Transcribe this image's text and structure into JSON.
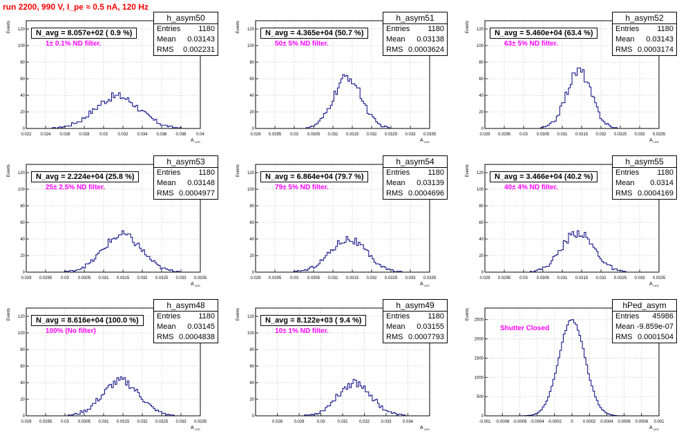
{
  "page_title": "run 2200,   990 V, I_pe ≈ 0.5 nA, 120 Hz",
  "colors": {
    "title": "#ff0000",
    "filter_label": "#ff00ff",
    "histogram": "#000080",
    "grid": "#b4b4b4"
  },
  "axis": {
    "ylabel": "Events",
    "xlabel": "A",
    "xlabel_sub": "LED"
  },
  "panels": [
    {
      "name": "h_asym50",
      "navg": "N_avg = 8.057e+02 ( 0.9 %)",
      "filter": "1± 0.1% ND filter.",
      "stats": {
        "labels": [
          "Entries",
          "Mean",
          "RMS"
        ],
        "values": [
          "1180",
          "0.03143",
          "0.002231"
        ]
      },
      "xlim": [
        0.022,
        0.04
      ],
      "ylim": [
        0,
        130
      ],
      "xticks": [
        0.022,
        0.024,
        0.026,
        0.028,
        0.03,
        0.032,
        0.034,
        0.036,
        0.038,
        0.04
      ],
      "xticklabels": [
        "0.022",
        "0.024",
        "0.026",
        "0.028",
        "0.03",
        "0.032",
        "0.034",
        "0.036",
        "0.038",
        "0.04"
      ],
      "yticks": [
        0,
        20,
        40,
        60,
        80,
        100,
        120
      ],
      "yticklabels": [
        "0",
        "20",
        "40",
        "60",
        "80",
        "100",
        "120"
      ],
      "hist": {
        "center": 0.0314,
        "sigma": 0.0023,
        "peak": 39
      }
    },
    {
      "name": "h_asym51",
      "navg": "N_avg = 4.365e+04 (50.7 %)",
      "filter": "50± 5% ND filter.",
      "stats": {
        "labels": [
          "Entries",
          "Mean",
          "RMS"
        ],
        "values": [
          "1180",
          "0.03138",
          "0.0003624"
        ]
      },
      "xlim": [
        0.029,
        0.0335
      ],
      "ylim": [
        0,
        130
      ],
      "xticks": [
        0.029,
        0.0295,
        0.03,
        0.0305,
        0.031,
        0.0315,
        0.032,
        0.0325,
        0.033,
        0.0335
      ],
      "xticklabels": [
        "0.029",
        "0.0295",
        "0.03",
        "0.0305",
        "0.031",
        "0.0315",
        "0.032",
        "0.0325",
        "0.033",
        "0.0335"
      ],
      "yticks": [
        0,
        20,
        40,
        60,
        80,
        100,
        120
      ],
      "yticklabels": [
        "0",
        "20",
        "40",
        "60",
        "80",
        "100",
        "120"
      ],
      "hist": {
        "center": 0.03138,
        "sigma": 0.00036,
        "peak": 62
      }
    },
    {
      "name": "h_asym52",
      "navg": "N_avg = 5.460e+04 (63.4 %)",
      "filter": "63± 5% ND filter.",
      "stats": {
        "labels": [
          "Entries",
          "Mean",
          "RMS"
        ],
        "values": [
          "1180",
          "0.03143",
          "0.0003174"
        ]
      },
      "xlim": [
        0.029,
        0.0335
      ],
      "ylim": [
        0,
        130
      ],
      "xticks": [
        0.029,
        0.0295,
        0.03,
        0.0305,
        0.031,
        0.0315,
        0.032,
        0.0325,
        0.033,
        0.0335
      ],
      "xticklabels": [
        "0.029",
        "0.0295",
        "0.03",
        "0.0305",
        "0.031",
        "0.0315",
        "0.032",
        "0.0325",
        "0.033",
        "0.0335"
      ],
      "yticks": [
        0,
        20,
        40,
        60,
        80,
        100,
        120
      ],
      "yticklabels": [
        "0",
        "20",
        "40",
        "60",
        "80",
        "100",
        "120"
      ],
      "hist": {
        "center": 0.03143,
        "sigma": 0.00032,
        "peak": 70
      }
    },
    {
      "name": "h_asym53",
      "navg": "N_avg = 2.224e+04 (25.8 %)",
      "filter": "25± 2.5% ND filter.",
      "stats": {
        "labels": [
          "Entries",
          "Mean",
          "RMS"
        ],
        "values": [
          "1180",
          "0.03148",
          "0.0004977"
        ]
      },
      "xlim": [
        0.029,
        0.0335
      ],
      "ylim": [
        0,
        130
      ],
      "xticks": [
        0.029,
        0.0295,
        0.03,
        0.0305,
        0.031,
        0.0315,
        0.032,
        0.0325,
        0.033,
        0.0335
      ],
      "xticklabels": [
        "0.029",
        "0.0295",
        "0.03",
        "0.0305",
        "0.031",
        "0.0315",
        "0.032",
        "0.0325",
        "0.033",
        "0.0335"
      ],
      "yticks": [
        0,
        20,
        40,
        60,
        80,
        100,
        120
      ],
      "yticklabels": [
        "0",
        "20",
        "40",
        "60",
        "80",
        "100",
        "120"
      ],
      "hist": {
        "center": 0.03148,
        "sigma": 0.0005,
        "peak": 45
      }
    },
    {
      "name": "h_asym54",
      "navg": "N_avg = 6.864e+04 (79.7 %)",
      "filter": "79± 5% ND filter.",
      "stats": {
        "labels": [
          "Entries",
          "Mean",
          "RMS"
        ],
        "values": [
          "1180",
          "0.03139",
          "0.0004696"
        ]
      },
      "xlim": [
        0.029,
        0.0335
      ],
      "ylim": [
        0,
        130
      ],
      "xticks": [
        0.029,
        0.0295,
        0.03,
        0.0305,
        0.031,
        0.0315,
        0.032,
        0.0325,
        0.033,
        0.0335
      ],
      "xticklabels": [
        "0.029",
        "0.0295",
        "0.03",
        "0.0305",
        "0.031",
        "0.0315",
        "0.032",
        "0.0325",
        "0.033",
        "0.0335"
      ],
      "yticks": [
        0,
        20,
        40,
        60,
        80,
        100,
        120
      ],
      "yticklabels": [
        "0",
        "20",
        "40",
        "60",
        "80",
        "100",
        "120"
      ],
      "hist": {
        "center": 0.03139,
        "sigma": 0.00047,
        "peak": 40
      }
    },
    {
      "name": "h_asym55",
      "navg": "N_avg = 3.466e+04 (40.2 %)",
      "filter": "40± 4% ND filter.",
      "stats": {
        "labels": [
          "Entries",
          "Mean",
          "RMS"
        ],
        "values": [
          "1180",
          "0.0314",
          "0.0004169"
        ]
      },
      "xlim": [
        0.029,
        0.0335
      ],
      "ylim": [
        0,
        130
      ],
      "xticks": [
        0.029,
        0.0295,
        0.03,
        0.0305,
        0.031,
        0.0315,
        0.032,
        0.0325,
        0.033,
        0.0335
      ],
      "xticklabels": [
        "0.029",
        "0.0295",
        "0.03",
        "0.0305",
        "0.031",
        "0.0315",
        "0.032",
        "0.0325",
        "0.033",
        "0.0335"
      ],
      "yticks": [
        0,
        20,
        40,
        60,
        80,
        100,
        120
      ],
      "yticklabels": [
        "0",
        "20",
        "40",
        "60",
        "80",
        "100",
        "120"
      ],
      "hist": {
        "center": 0.0314,
        "sigma": 0.00042,
        "peak": 48
      }
    },
    {
      "name": "h_asym48",
      "navg": "N_avg = 8.616e+04 (100.0 %)",
      "filter": "100% (No filter)",
      "stats": {
        "labels": [
          "Entries",
          "Mean",
          "RMS"
        ],
        "values": [
          "1180",
          "0.03145",
          "0.0004838"
        ]
      },
      "xlim": [
        0.029,
        0.0335
      ],
      "ylim": [
        0,
        130
      ],
      "xticks": [
        0.029,
        0.0295,
        0.03,
        0.0305,
        0.031,
        0.0315,
        0.032,
        0.0325,
        0.033,
        0.0335
      ],
      "xticklabels": [
        "0.029",
        "0.0295",
        "0.03",
        "0.0305",
        "0.031",
        "0.0315",
        "0.032",
        "0.0325",
        "0.033",
        "0.0335"
      ],
      "yticks": [
        0,
        20,
        40,
        60,
        80,
        100,
        120
      ],
      "yticklabels": [
        "0",
        "20",
        "40",
        "60",
        "80",
        "100",
        "120"
      ],
      "hist": {
        "center": 0.03145,
        "sigma": 0.00048,
        "peak": 42
      }
    },
    {
      "name": "h_asym49",
      "navg": "N_avg = 8.122e+03 ( 9.4 %)",
      "filter": "10± 1% ND filter.",
      "stats": {
        "labels": [
          "Entries",
          "Mean",
          "RMS"
        ],
        "values": [
          "1180",
          "0.03155",
          "0.0007793"
        ]
      },
      "xlim": [
        0.027,
        0.035
      ],
      "ylim": [
        0,
        130
      ],
      "xticks": [
        0.028,
        0.029,
        0.03,
        0.031,
        0.032,
        0.033,
        0.034
      ],
      "xticklabels": [
        "0.028",
        "0.029",
        "0.03",
        "0.031",
        "0.032",
        "0.033",
        "0.034"
      ],
      "yticks": [
        0,
        20,
        40,
        60,
        80,
        100,
        120
      ],
      "yticklabels": [
        "0",
        "20",
        "40",
        "60",
        "80",
        "100",
        "120"
      ],
      "hist": {
        "center": 0.03155,
        "sigma": 0.00078,
        "peak": 40
      }
    },
    {
      "name": "hPed_asym",
      "navg": "",
      "filter": "Shutter Closed",
      "stats": {
        "labels": [
          "Entries",
          "Mean",
          "RMS"
        ],
        "values": [
          "45986",
          "-9.859e-07",
          "0.0001504"
        ]
      },
      "xlim": [
        -0.001,
        0.001
      ],
      "ylim": [
        0,
        2800
      ],
      "xticks": [
        -0.001,
        -0.0008,
        -0.0006,
        -0.0004,
        -0.0002,
        0,
        0.0002,
        0.0004,
        0.0006,
        0.0008,
        0.001
      ],
      "xticklabels": [
        "-0.001",
        "-0.0008",
        "-0.0006",
        "-0.0004",
        "-0.0002",
        "0",
        "0.0002",
        "0.0004",
        "0.0006",
        "0.0008",
        "0.001"
      ],
      "yticks": [
        0,
        500,
        1000,
        1500,
        2000,
        2500
      ],
      "yticklabels": [
        "0",
        "500",
        "1000",
        "1500",
        "2000",
        "2500"
      ],
      "hist": {
        "center": 0.0,
        "sigma": 0.00015,
        "peak": 2500
      }
    }
  ],
  "chart_data": [
    {
      "type": "bar",
      "name": "h_asym50",
      "xlim": [
        0.022,
        0.04
      ],
      "ylim": [
        0,
        130
      ],
      "entries": 1180,
      "mean": 0.03143,
      "rms": 0.002231
    },
    {
      "type": "bar",
      "name": "h_asym51",
      "xlim": [
        0.029,
        0.0335
      ],
      "ylim": [
        0,
        130
      ],
      "entries": 1180,
      "mean": 0.03138,
      "rms": 0.0003624
    },
    {
      "type": "bar",
      "name": "h_asym52",
      "xlim": [
        0.029,
        0.0335
      ],
      "ylim": [
        0,
        130
      ],
      "entries": 1180,
      "mean": 0.03143,
      "rms": 0.0003174
    },
    {
      "type": "bar",
      "name": "h_asym53",
      "xlim": [
        0.029,
        0.0335
      ],
      "ylim": [
        0,
        130
      ],
      "entries": 1180,
      "mean": 0.03148,
      "rms": 0.0004977
    },
    {
      "type": "bar",
      "name": "h_asym54",
      "xlim": [
        0.029,
        0.0335
      ],
      "ylim": [
        0,
        130
      ],
      "entries": 1180,
      "mean": 0.03139,
      "rms": 0.0004696
    },
    {
      "type": "bar",
      "name": "h_asym55",
      "xlim": [
        0.029,
        0.0335
      ],
      "ylim": [
        0,
        130
      ],
      "entries": 1180,
      "mean": 0.0314,
      "rms": 0.0004169
    },
    {
      "type": "bar",
      "name": "h_asym48",
      "xlim": [
        0.029,
        0.0335
      ],
      "ylim": [
        0,
        130
      ],
      "entries": 1180,
      "mean": 0.03145,
      "rms": 0.0004838
    },
    {
      "type": "bar",
      "name": "h_asym49",
      "xlim": [
        0.027,
        0.035
      ],
      "ylim": [
        0,
        130
      ],
      "entries": 1180,
      "mean": 0.03155,
      "rms": 0.0007793
    },
    {
      "type": "bar",
      "name": "hPed_asym",
      "xlim": [
        -0.001,
        0.001
      ],
      "ylim": [
        0,
        2800
      ],
      "entries": 45986,
      "mean": -9.859e-07,
      "rms": 0.0001504
    }
  ]
}
